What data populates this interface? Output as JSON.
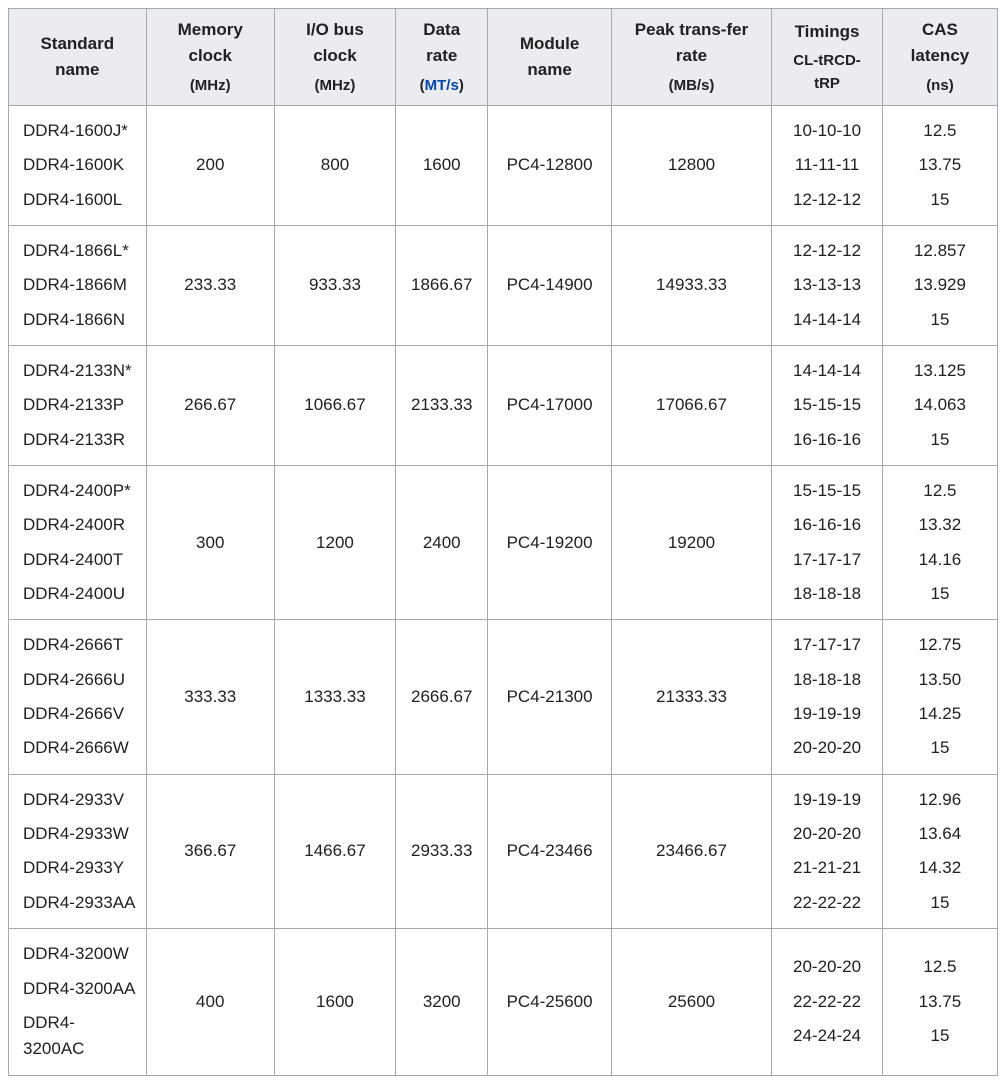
{
  "table": {
    "type": "table",
    "border_color": "#a2a9b1",
    "header_bg": "#eaecf0",
    "cell_bg": "#ffffff",
    "font_family": "Arial, Helvetica, sans-serif",
    "font_size_pt": 13,
    "link_color": "#0645ad",
    "columns": [
      {
        "title": "Standard name",
        "sub": ""
      },
      {
        "title": "Memory clock",
        "sub": "(MHz)"
      },
      {
        "title": "I/O bus clock",
        "sub": "(MHz)"
      },
      {
        "title": "Data rate",
        "sub_prefix": "(",
        "sub_link": "MT/s",
        "sub_suffix": ")"
      },
      {
        "title": "Module name",
        "sub": ""
      },
      {
        "title": "Peak trans-fer rate",
        "sub": "(MB/s)"
      },
      {
        "title": "Timings",
        "sub": "CL-tRCD-tRP"
      },
      {
        "title": "CAS latency",
        "sub": "(ns)"
      }
    ],
    "rows": [
      {
        "standard": [
          "DDR4-1600J*",
          "DDR4-1600K",
          "DDR4-1600L"
        ],
        "mem_clock": "200",
        "io_clock": "800",
        "data_rate": "1600",
        "module": "PC4-12800",
        "peak": "12800",
        "timings": [
          "10-10-10",
          "11-11-11",
          "12-12-12"
        ],
        "cas": [
          "12.5",
          "13.75",
          "15"
        ]
      },
      {
        "standard": [
          "DDR4-1866L*",
          "DDR4-1866M",
          "DDR4-1866N"
        ],
        "mem_clock": "233.33",
        "io_clock": "933.33",
        "data_rate": "1866.67",
        "module": "PC4-14900",
        "peak": "14933.33",
        "timings": [
          "12-12-12",
          "13-13-13",
          "14-14-14"
        ],
        "cas": [
          "12.857",
          "13.929",
          "15"
        ]
      },
      {
        "standard": [
          "DDR4-2133N*",
          "DDR4-2133P",
          "DDR4-2133R"
        ],
        "mem_clock": "266.67",
        "io_clock": "1066.67",
        "data_rate": "2133.33",
        "module": "PC4-17000",
        "peak": "17066.67",
        "timings": [
          "14-14-14",
          "15-15-15",
          "16-16-16"
        ],
        "cas": [
          "13.125",
          "14.063",
          "15"
        ]
      },
      {
        "standard": [
          "DDR4-2400P*",
          "DDR4-2400R",
          "DDR4-2400T",
          "DDR4-2400U"
        ],
        "mem_clock": "300",
        "io_clock": "1200",
        "data_rate": "2400",
        "module": "PC4-19200",
        "peak": "19200",
        "timings": [
          "15-15-15",
          "16-16-16",
          "17-17-17",
          "18-18-18"
        ],
        "cas": [
          "12.5",
          "13.32",
          "14.16",
          "15"
        ]
      },
      {
        "standard": [
          "DDR4-2666T",
          "DDR4-2666U",
          "DDR4-2666V",
          "DDR4-2666W"
        ],
        "mem_clock": "333.33",
        "io_clock": "1333.33",
        "data_rate": "2666.67",
        "module": "PC4-21300",
        "peak": "21333.33",
        "timings": [
          "17-17-17",
          "18-18-18",
          "19-19-19",
          "20-20-20"
        ],
        "cas": [
          "12.75",
          "13.50",
          "14.25",
          "15"
        ]
      },
      {
        "standard": [
          "DDR4-2933V",
          "DDR4-2933W",
          "DDR4-2933Y",
          "DDR4-2933AA"
        ],
        "mem_clock": "366.67",
        "io_clock": "1466.67",
        "data_rate": "2933.33",
        "module": "PC4-23466",
        "peak": "23466.67",
        "timings": [
          "19-19-19",
          "20-20-20",
          "21-21-21",
          "22-22-22"
        ],
        "cas": [
          "12.96",
          "13.64",
          "14.32",
          "15"
        ]
      },
      {
        "standard": [
          "DDR4-3200W",
          "DDR4-3200AA",
          "DDR4-3200AC"
        ],
        "mem_clock": "400",
        "io_clock": "1600",
        "data_rate": "3200",
        "module": "PC4-25600",
        "peak": "25600",
        "timings": [
          "20-20-20",
          "22-22-22",
          "24-24-24"
        ],
        "cas": [
          "12.5",
          "13.75",
          "15"
        ]
      }
    ]
  }
}
